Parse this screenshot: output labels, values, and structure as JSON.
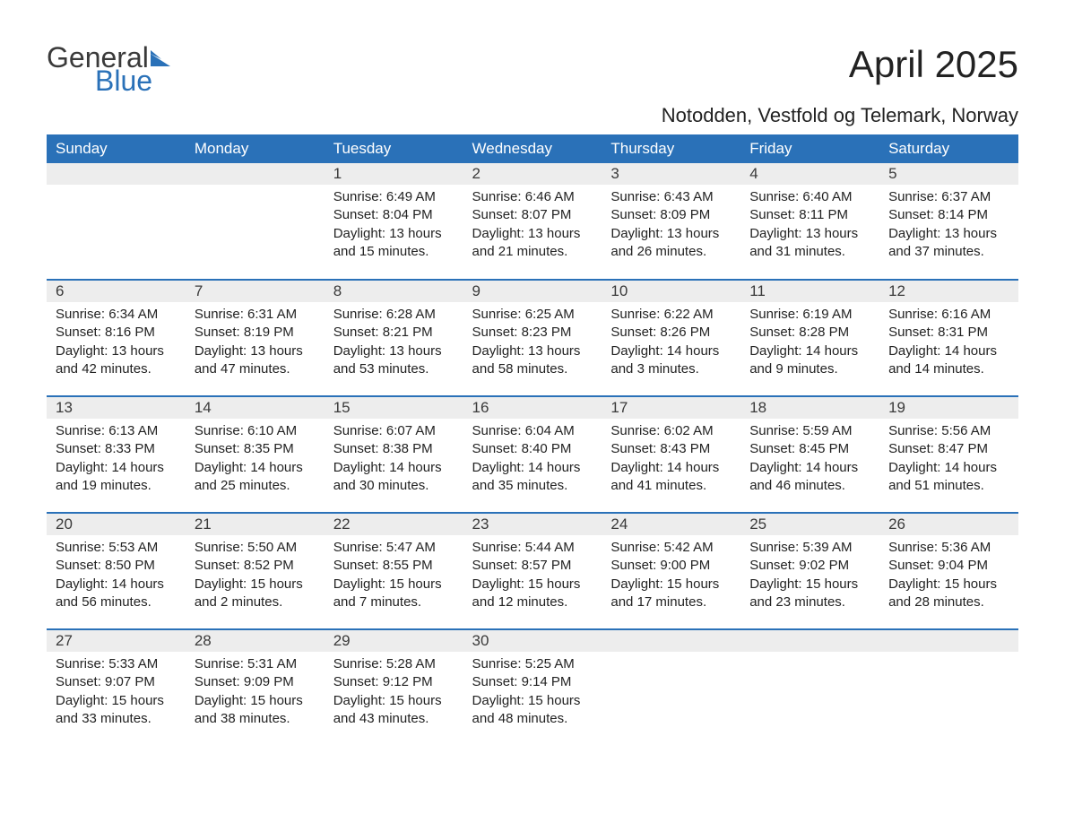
{
  "logo": {
    "word1": "General",
    "word2": "Blue",
    "flag_color": "#2a71b8",
    "text_gray": "#3a3a3a"
  },
  "title": "April 2025",
  "subtitle": "Notodden, Vestfold og Telemark, Norway",
  "colors": {
    "header_bg": "#2a71b8",
    "header_text": "#ffffff",
    "daynum_bg": "#ededed",
    "row_border": "#2a71b8",
    "body_text": "#222222",
    "page_bg": "#ffffff"
  },
  "day_headers": [
    "Sunday",
    "Monday",
    "Tuesday",
    "Wednesday",
    "Thursday",
    "Friday",
    "Saturday"
  ],
  "weeks": [
    [
      {
        "n": "",
        "sr": "",
        "ss": "",
        "dl": ""
      },
      {
        "n": "",
        "sr": "",
        "ss": "",
        "dl": ""
      },
      {
        "n": "1",
        "sr": "Sunrise: 6:49 AM",
        "ss": "Sunset: 8:04 PM",
        "dl": "Daylight: 13 hours and 15 minutes."
      },
      {
        "n": "2",
        "sr": "Sunrise: 6:46 AM",
        "ss": "Sunset: 8:07 PM",
        "dl": "Daylight: 13 hours and 21 minutes."
      },
      {
        "n": "3",
        "sr": "Sunrise: 6:43 AM",
        "ss": "Sunset: 8:09 PM",
        "dl": "Daylight: 13 hours and 26 minutes."
      },
      {
        "n": "4",
        "sr": "Sunrise: 6:40 AM",
        "ss": "Sunset: 8:11 PM",
        "dl": "Daylight: 13 hours and 31 minutes."
      },
      {
        "n": "5",
        "sr": "Sunrise: 6:37 AM",
        "ss": "Sunset: 8:14 PM",
        "dl": "Daylight: 13 hours and 37 minutes."
      }
    ],
    [
      {
        "n": "6",
        "sr": "Sunrise: 6:34 AM",
        "ss": "Sunset: 8:16 PM",
        "dl": "Daylight: 13 hours and 42 minutes."
      },
      {
        "n": "7",
        "sr": "Sunrise: 6:31 AM",
        "ss": "Sunset: 8:19 PM",
        "dl": "Daylight: 13 hours and 47 minutes."
      },
      {
        "n": "8",
        "sr": "Sunrise: 6:28 AM",
        "ss": "Sunset: 8:21 PM",
        "dl": "Daylight: 13 hours and 53 minutes."
      },
      {
        "n": "9",
        "sr": "Sunrise: 6:25 AM",
        "ss": "Sunset: 8:23 PM",
        "dl": "Daylight: 13 hours and 58 minutes."
      },
      {
        "n": "10",
        "sr": "Sunrise: 6:22 AM",
        "ss": "Sunset: 8:26 PM",
        "dl": "Daylight: 14 hours and 3 minutes."
      },
      {
        "n": "11",
        "sr": "Sunrise: 6:19 AM",
        "ss": "Sunset: 8:28 PM",
        "dl": "Daylight: 14 hours and 9 minutes."
      },
      {
        "n": "12",
        "sr": "Sunrise: 6:16 AM",
        "ss": "Sunset: 8:31 PM",
        "dl": "Daylight: 14 hours and 14 minutes."
      }
    ],
    [
      {
        "n": "13",
        "sr": "Sunrise: 6:13 AM",
        "ss": "Sunset: 8:33 PM",
        "dl": "Daylight: 14 hours and 19 minutes."
      },
      {
        "n": "14",
        "sr": "Sunrise: 6:10 AM",
        "ss": "Sunset: 8:35 PM",
        "dl": "Daylight: 14 hours and 25 minutes."
      },
      {
        "n": "15",
        "sr": "Sunrise: 6:07 AM",
        "ss": "Sunset: 8:38 PM",
        "dl": "Daylight: 14 hours and 30 minutes."
      },
      {
        "n": "16",
        "sr": "Sunrise: 6:04 AM",
        "ss": "Sunset: 8:40 PM",
        "dl": "Daylight: 14 hours and 35 minutes."
      },
      {
        "n": "17",
        "sr": "Sunrise: 6:02 AM",
        "ss": "Sunset: 8:43 PM",
        "dl": "Daylight: 14 hours and 41 minutes."
      },
      {
        "n": "18",
        "sr": "Sunrise: 5:59 AM",
        "ss": "Sunset: 8:45 PM",
        "dl": "Daylight: 14 hours and 46 minutes."
      },
      {
        "n": "19",
        "sr": "Sunrise: 5:56 AM",
        "ss": "Sunset: 8:47 PM",
        "dl": "Daylight: 14 hours and 51 minutes."
      }
    ],
    [
      {
        "n": "20",
        "sr": "Sunrise: 5:53 AM",
        "ss": "Sunset: 8:50 PM",
        "dl": "Daylight: 14 hours and 56 minutes."
      },
      {
        "n": "21",
        "sr": "Sunrise: 5:50 AM",
        "ss": "Sunset: 8:52 PM",
        "dl": "Daylight: 15 hours and 2 minutes."
      },
      {
        "n": "22",
        "sr": "Sunrise: 5:47 AM",
        "ss": "Sunset: 8:55 PM",
        "dl": "Daylight: 15 hours and 7 minutes."
      },
      {
        "n": "23",
        "sr": "Sunrise: 5:44 AM",
        "ss": "Sunset: 8:57 PM",
        "dl": "Daylight: 15 hours and 12 minutes."
      },
      {
        "n": "24",
        "sr": "Sunrise: 5:42 AM",
        "ss": "Sunset: 9:00 PM",
        "dl": "Daylight: 15 hours and 17 minutes."
      },
      {
        "n": "25",
        "sr": "Sunrise: 5:39 AM",
        "ss": "Sunset: 9:02 PM",
        "dl": "Daylight: 15 hours and 23 minutes."
      },
      {
        "n": "26",
        "sr": "Sunrise: 5:36 AM",
        "ss": "Sunset: 9:04 PM",
        "dl": "Daylight: 15 hours and 28 minutes."
      }
    ],
    [
      {
        "n": "27",
        "sr": "Sunrise: 5:33 AM",
        "ss": "Sunset: 9:07 PM",
        "dl": "Daylight: 15 hours and 33 minutes."
      },
      {
        "n": "28",
        "sr": "Sunrise: 5:31 AM",
        "ss": "Sunset: 9:09 PM",
        "dl": "Daylight: 15 hours and 38 minutes."
      },
      {
        "n": "29",
        "sr": "Sunrise: 5:28 AM",
        "ss": "Sunset: 9:12 PM",
        "dl": "Daylight: 15 hours and 43 minutes."
      },
      {
        "n": "30",
        "sr": "Sunrise: 5:25 AM",
        "ss": "Sunset: 9:14 PM",
        "dl": "Daylight: 15 hours and 48 minutes."
      },
      {
        "n": "",
        "sr": "",
        "ss": "",
        "dl": ""
      },
      {
        "n": "",
        "sr": "",
        "ss": "",
        "dl": ""
      },
      {
        "n": "",
        "sr": "",
        "ss": "",
        "dl": ""
      }
    ]
  ]
}
